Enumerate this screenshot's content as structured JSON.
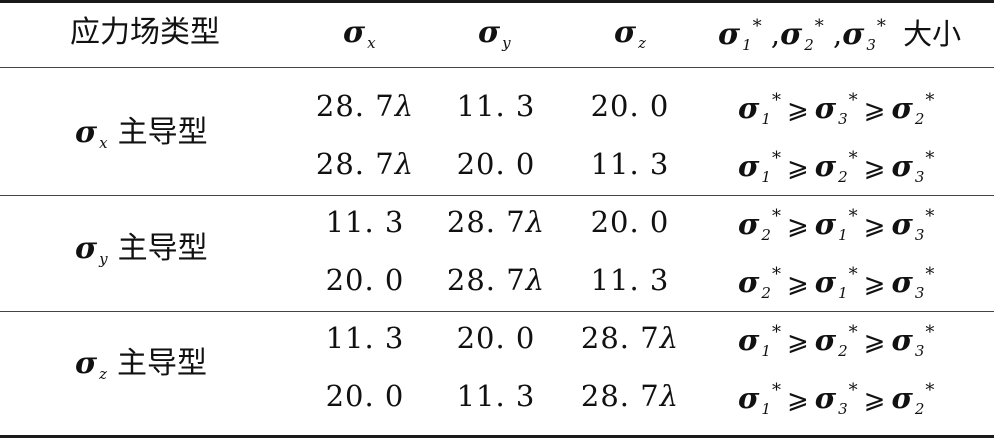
{
  "header": {
    "type_label": "应力场类型",
    "col_x_sub": "x",
    "col_y_sub": "y",
    "col_z_sub": "z",
    "size_label": "大小"
  },
  "groups": [
    {
      "name_sub": "x",
      "name_cn": "主导型",
      "rows": [
        {
          "sx": "28. 7λ",
          "sy": "11. 3",
          "sz": "20. 0",
          "order": [
            "1",
            "3",
            "2"
          ]
        },
        {
          "sx": "28. 7λ",
          "sy": "20. 0",
          "sz": "11. 3",
          "order": [
            "1",
            "2",
            "3"
          ]
        }
      ]
    },
    {
      "name_sub": "y",
      "name_cn": "主导型",
      "rows": [
        {
          "sx": "11. 3",
          "sy": "28. 7λ",
          "sz": "20. 0",
          "order": [
            "2",
            "1",
            "3"
          ]
        },
        {
          "sx": "20. 0",
          "sy": "28. 7λ",
          "sz": "11. 3",
          "order": [
            "2",
            "1",
            "3"
          ]
        }
      ]
    },
    {
      "name_sub": "z",
      "name_cn": "主导型",
      "rows": [
        {
          "sx": "11. 3",
          "sy": "20. 0",
          "sz": "28. 7λ",
          "order": [
            "1",
            "2",
            "3"
          ]
        },
        {
          "sx": "20. 0",
          "sy": "11. 3",
          "sz": "28. 7λ",
          "order": [
            "1",
            "3",
            "2"
          ]
        }
      ]
    }
  ]
}
